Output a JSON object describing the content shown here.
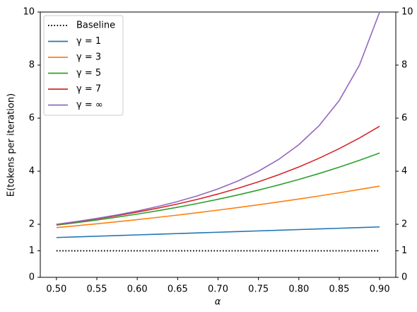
{
  "chart_data": {
    "type": "line",
    "x_label": "α",
    "y_label": "E(tokens per iteration)",
    "x": [
      0.5,
      0.525,
      0.55,
      0.575,
      0.6,
      0.625,
      0.65,
      0.675,
      0.7,
      0.725,
      0.75,
      0.775,
      0.8,
      0.825,
      0.85,
      0.875,
      0.9
    ],
    "series": [
      {
        "name": "Baseline",
        "color": "#000000",
        "dash": "dotted",
        "values": [
          1,
          1,
          1,
          1,
          1,
          1,
          1,
          1,
          1,
          1,
          1,
          1,
          1,
          1,
          1,
          1,
          1
        ]
      },
      {
        "name": "γ = 1",
        "color": "#1f77b4",
        "values": [
          1.5,
          1.525,
          1.55,
          1.575,
          1.6,
          1.625,
          1.65,
          1.675,
          1.7,
          1.725,
          1.75,
          1.775,
          1.8,
          1.825,
          1.85,
          1.875,
          1.9
        ]
      },
      {
        "name": "γ = 3",
        "color": "#ff7f0e",
        "values": [
          1.875,
          1.945,
          2.019,
          2.096,
          2.176,
          2.26,
          2.347,
          2.438,
          2.533,
          2.632,
          2.734,
          2.841,
          2.952,
          3.067,
          3.187,
          3.311,
          3.439
        ]
      },
      {
        "name": "γ = 5",
        "color": "#2ca02c",
        "values": [
          1.969,
          2.061,
          2.161,
          2.268,
          2.383,
          2.508,
          2.642,
          2.786,
          2.941,
          3.109,
          3.288,
          3.481,
          3.689,
          3.912,
          4.153,
          4.41,
          4.686
        ]
      },
      {
        "name": "γ = 7",
        "color": "#d62728",
        "values": [
          1.992,
          2.093,
          2.204,
          2.325,
          2.458,
          2.605,
          2.766,
          2.944,
          3.141,
          3.36,
          3.6,
          3.866,
          4.161,
          4.488,
          4.851,
          5.251,
          5.695
        ]
      },
      {
        "name": "γ = ∞",
        "color": "#9467bd",
        "values": [
          2,
          2.105,
          2.222,
          2.353,
          2.5,
          2.667,
          2.857,
          3.077,
          3.333,
          3.636,
          4,
          4.444,
          5,
          5.714,
          6.667,
          8,
          10
        ]
      }
    ],
    "xlim": [
      0.48,
      0.92
    ],
    "xticks": [
      {
        "value": 0.5,
        "label": "0.50"
      },
      {
        "value": 0.55,
        "label": "0.55"
      },
      {
        "value": 0.6,
        "label": "0.60"
      },
      {
        "value": 0.65,
        "label": "0.65"
      },
      {
        "value": 0.7,
        "label": "0.70"
      },
      {
        "value": 0.75,
        "label": "0.75"
      },
      {
        "value": 0.8,
        "label": "0.80"
      },
      {
        "value": 0.85,
        "label": "0.85"
      },
      {
        "value": 0.9,
        "label": "0.90"
      }
    ],
    "ylim": [
      0,
      10
    ],
    "yticks": [
      0,
      1,
      2,
      4,
      6,
      8,
      10
    ],
    "y2lim": [
      0,
      10
    ],
    "y2ticks": [
      0,
      1,
      2,
      4,
      6,
      8,
      10
    ],
    "grid": false,
    "legend": "upper left"
  }
}
